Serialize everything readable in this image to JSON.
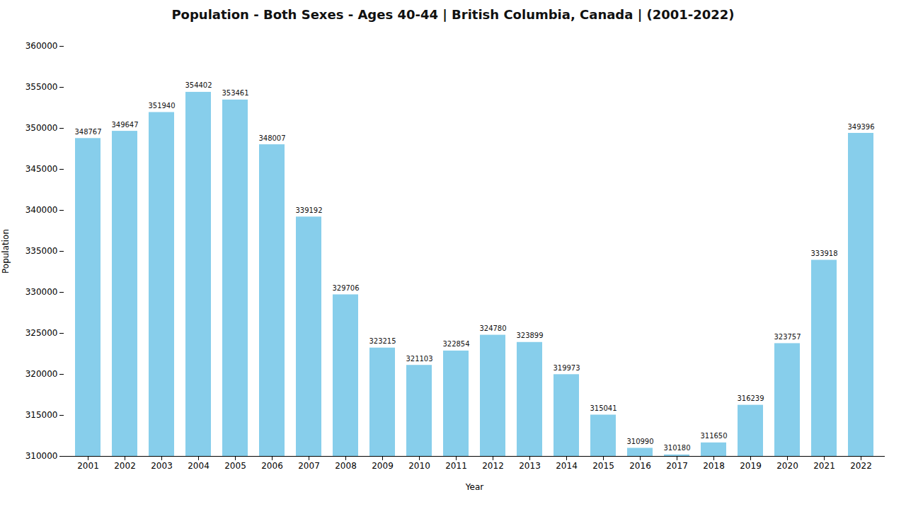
{
  "chart_data": {
    "type": "bar",
    "title": "Population - Both Sexes - Ages 40-44 | British Columbia, Canada |  (2001-2022)",
    "xlabel": "Year",
    "ylabel": "Population",
    "categories": [
      "2001",
      "2002",
      "2003",
      "2004",
      "2005",
      "2006",
      "2007",
      "2008",
      "2009",
      "2010",
      "2011",
      "2012",
      "2013",
      "2014",
      "2015",
      "2016",
      "2017",
      "2018",
      "2019",
      "2020",
      "2021",
      "2022"
    ],
    "values": [
      348767,
      349647,
      351940,
      354402,
      353461,
      348007,
      339192,
      329706,
      323215,
      321103,
      322854,
      324780,
      323899,
      319973,
      315041,
      310990,
      310180,
      311650,
      316239,
      323757,
      333918,
      349396
    ],
    "color": "#87CEEB",
    "ylim": [
      310000,
      360000
    ],
    "yticks": [
      310000,
      315000,
      320000,
      325000,
      330000,
      335000,
      340000,
      345000,
      350000,
      355000,
      360000
    ],
    "grid": false,
    "data_labels": true
  }
}
